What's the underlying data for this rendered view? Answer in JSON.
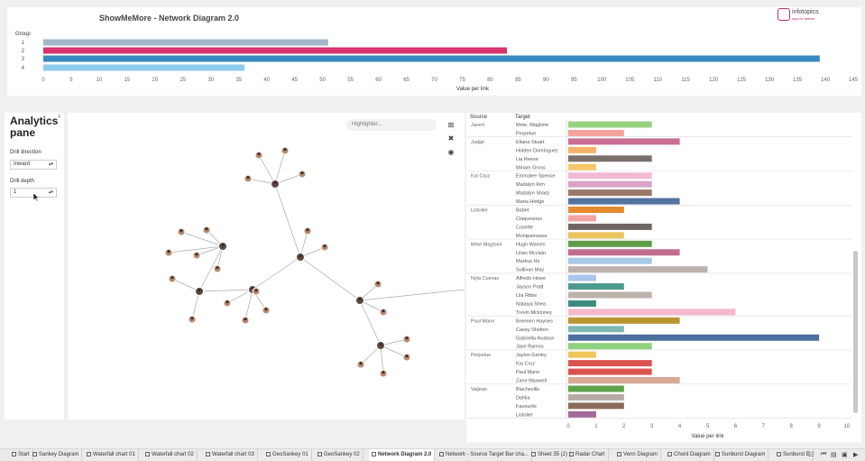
{
  "header": {
    "title": "ShowMeMore - Network Diagram 2.0",
    "logo_name": "infotopics",
    "logo_tag": "apps for tableau"
  },
  "chart_data": [
    {
      "type": "bar",
      "orientation": "horizontal",
      "ylabel": "Group",
      "xlabel": "Value per link",
      "categories": [
        "1",
        "2",
        "3",
        "4"
      ],
      "values": [
        51,
        83,
        139,
        36
      ],
      "colors": [
        "#a3b5c9",
        "#d6336c",
        "#3a89c1",
        "#8ecbef"
      ],
      "xlim": [
        0,
        145
      ],
      "xticks": [
        0,
        5,
        10,
        15,
        20,
        25,
        30,
        35,
        40,
        45,
        50,
        55,
        60,
        65,
        70,
        75,
        80,
        85,
        90,
        95,
        100,
        105,
        110,
        115,
        120,
        125,
        130,
        135,
        140,
        145
      ]
    },
    {
      "type": "bar",
      "orientation": "horizontal",
      "xlabel": "Value per link",
      "columns": [
        "Source",
        "Target"
      ],
      "xlim": [
        0,
        10
      ],
      "xticks": [
        0,
        1,
        2,
        3,
        4,
        5,
        6,
        7,
        8,
        9,
        10
      ],
      "groups": [
        {
          "source": "Javert",
          "rows": [
            {
              "target": "Mme. Magloire",
              "value": 3,
              "color": "#98d17f"
            },
            {
              "target": "Perpetue",
              "value": 2,
              "color": "#f4a29b"
            }
          ]
        },
        {
          "source": "Judge",
          "rows": [
            {
              "target": "Eliana Stuart",
              "value": 4,
              "color": "#c96d93"
            },
            {
              "target": "Holden Dominguez",
              "value": 1,
              "color": "#f7b267"
            },
            {
              "target": "Lia Reese",
              "value": 3,
              "color": "#7a6f6a"
            },
            {
              "target": "Miriam Gross",
              "value": 1,
              "color": "#f7c66a"
            }
          ]
        },
        {
          "source": "Kai Cruz",
          "rows": [
            {
              "target": "Emmalee Spence",
              "value": 3,
              "color": "#f3b8d2"
            },
            {
              "target": "Madalyn Kim",
              "value": 3,
              "color": "#d9a3c6"
            },
            {
              "target": "Madalyn Sharp",
              "value": 3,
              "color": "#9a7868"
            },
            {
              "target": "Maria Hodge",
              "value": 4,
              "color": "#52749f"
            }
          ]
        },
        {
          "source": "Listolier",
          "rows": [
            {
              "target": "Babet",
              "value": 2,
              "color": "#e68a2e"
            },
            {
              "target": "Claquesous",
              "value": 1,
              "color": "#f4a3a3"
            },
            {
              "target": "Cosette",
              "value": 3,
              "color": "#6e6563"
            },
            {
              "target": "Montparnasse",
              "value": 2,
              "color": "#ecc45c"
            }
          ]
        },
        {
          "source": "Mme.Magloire",
          "rows": [
            {
              "target": "Hugh Warren",
              "value": 3,
              "color": "#5f9c48"
            },
            {
              "target": "Lilian Mcclain",
              "value": 4,
              "color": "#c26d8f"
            },
            {
              "target": "Markus Ho",
              "value": 3,
              "color": "#a8c8e6"
            },
            {
              "target": "Sullivan May",
              "value": 5,
              "color": "#bdb1ad"
            }
          ]
        },
        {
          "source": "Nyla Cuevas",
          "rows": [
            {
              "target": "Alfredo Howe",
              "value": 1,
              "color": "#a9c7ea"
            },
            {
              "target": "Jayson Pratt",
              "value": 2,
              "color": "#4a9a8d"
            },
            {
              "target": "Lila Ritter",
              "value": 3,
              "color": "#bdb3ad"
            },
            {
              "target": "Nataiya Shea",
              "value": 1,
              "color": "#3c8a80"
            },
            {
              "target": "Trevin Mckinney",
              "value": 6,
              "color": "#f5b8cb"
            }
          ]
        },
        {
          "source": "Paul Mann",
          "rows": [
            {
              "target": "Brennen Haynes",
              "value": 4,
              "color": "#b8962e"
            },
            {
              "target": "Casey Shelton",
              "value": 2,
              "color": "#7fb8b2"
            },
            {
              "target": "Gabriella Hudson",
              "value": 9,
              "color": "#4b6f9e"
            },
            {
              "target": "Jase Ramos",
              "value": 3,
              "color": "#8fd27e"
            }
          ]
        },
        {
          "source": "Perpetue",
          "rows": [
            {
              "target": "Jaylon Gentry",
              "value": 1,
              "color": "#f0c65a"
            },
            {
              "target": "Kai Cruz",
              "value": 3,
              "color": "#d9534f"
            },
            {
              "target": "Paul Mann",
              "value": 3,
              "color": "#d9534f"
            },
            {
              "target": "Zane Maxwell",
              "value": 4,
              "color": "#d9a896"
            }
          ]
        },
        {
          "source": "Valjean",
          "rows": [
            {
              "target": "Blacheville",
              "value": 2,
              "color": "#5fa24a"
            },
            {
              "target": "Dahlia",
              "value": 2,
              "color": "#b5aaa6"
            },
            {
              "target": "Favourite",
              "value": 2,
              "color": "#8c6b5a"
            },
            {
              "target": "Listolier",
              "value": 1,
              "color": "#a06a99"
            }
          ]
        }
      ]
    }
  ],
  "analytics_pane": {
    "title": "Analytics pane",
    "close": "x",
    "drill_direction_label": "Drill direction",
    "drill_direction_value": "Inward",
    "drill_depth_label": "Drill depth",
    "drill_depth_value": "1"
  },
  "graph": {
    "highlighter_placeholder": "Highlighter..."
  },
  "tabs": [
    "Start",
    "Sankey Diagram",
    "Waterfall chart 01",
    "Waterfall chart 02",
    "Waterfall chart 03",
    "GeoSankey 01",
    "GeoSankey 02",
    "Network Diagram 2.0",
    "Network - Source Target Bar cha...",
    "Sheet 35 (2)",
    "Radar Chart",
    "Venn Diagram",
    "Chord Diagram",
    "Sunburst Diagram",
    "Sunburst E"
  ],
  "active_tab": "Network Diagram 2.0"
}
